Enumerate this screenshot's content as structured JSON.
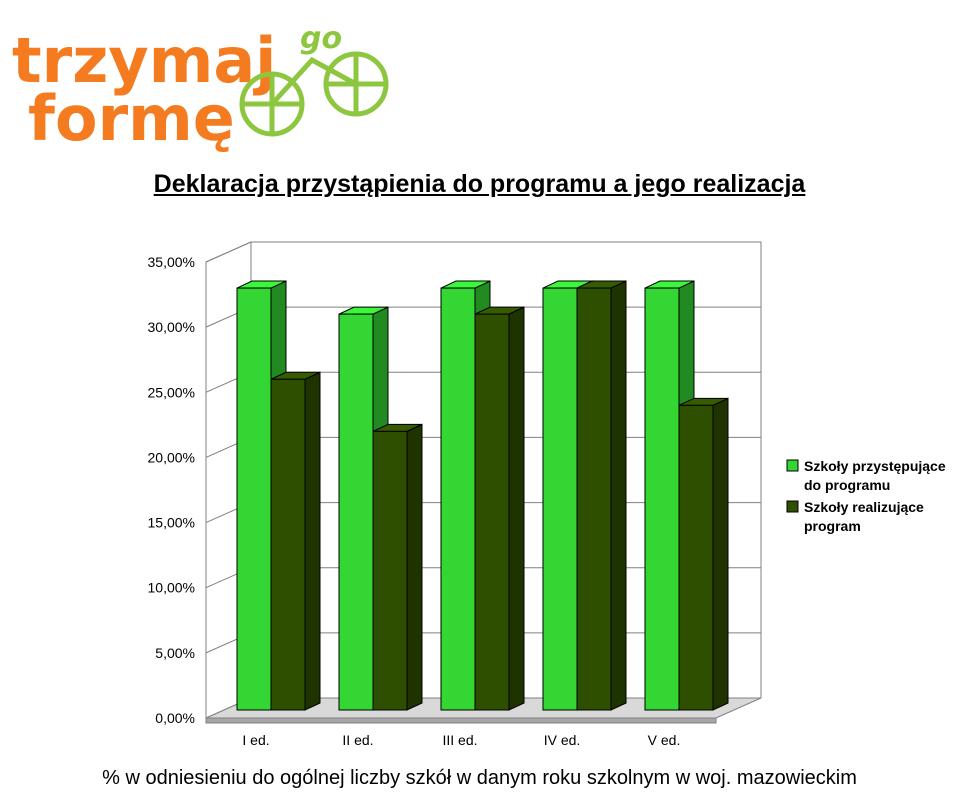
{
  "logo": {
    "line1": "trzymaj",
    "line2": "formę",
    "tag": "go",
    "colors": {
      "text": "#f47b20",
      "green": "#8dc63f"
    }
  },
  "chart_data": {
    "type": "bar",
    "title": "Deklaracja przystąpienia do programu a jego realizacja",
    "categories": [
      "I ed.",
      "II ed.",
      "III ed.",
      "IV ed.",
      "V ed."
    ],
    "series": [
      {
        "name": "Szkoły przystępujące do programu",
        "values": [
          33,
          31,
          33,
          33,
          33
        ],
        "color": "#33d633"
      },
      {
        "name": "Szkoły realizujące program",
        "values": [
          26,
          22,
          31,
          33,
          24
        ],
        "color": "#2f4f00"
      }
    ],
    "yticks": [
      "0,00%",
      "5,00%",
      "10,00%",
      "15,00%",
      "20,00%",
      "25,00%",
      "30,00%",
      "35,00%"
    ],
    "ylim": [
      0,
      35
    ],
    "grid": true,
    "legend_position": "right",
    "legend_lines": [
      [
        "Szkoły przystępujące",
        "do programu"
      ],
      [
        "Szkoły realizujące",
        "program"
      ]
    ],
    "note": "% w odniesieniu do ogólnej liczby szkół w danym roku szkolnym w woj. mazowieckim"
  }
}
